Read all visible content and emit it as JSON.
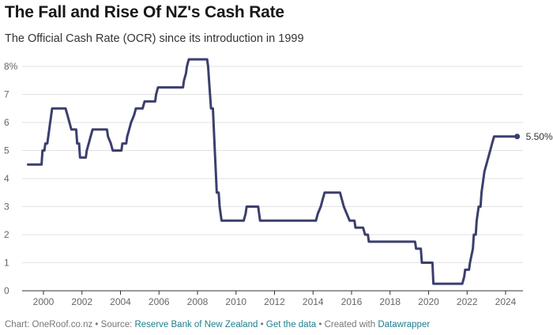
{
  "chart_data": {
    "type": "line",
    "title": "The Fall and Rise Of NZ's Cash Rate",
    "subtitle": "The Official Cash Rate (OCR) since its introduction in 1999",
    "xlabel": "",
    "ylabel": "",
    "xlim": [
      1999.0,
      2025.0
    ],
    "ylim": [
      0,
      8
    ],
    "grid": true,
    "y_ticks": [
      {
        "value": 0,
        "label": "0"
      },
      {
        "value": 1,
        "label": "1"
      },
      {
        "value": 2,
        "label": "2"
      },
      {
        "value": 3,
        "label": "3"
      },
      {
        "value": 4,
        "label": "4"
      },
      {
        "value": 5,
        "label": "5"
      },
      {
        "value": 6,
        "label": "6"
      },
      {
        "value": 7,
        "label": "7"
      },
      {
        "value": 8,
        "label": "8%"
      }
    ],
    "x_ticks": [
      {
        "value": 2000,
        "label": "2000"
      },
      {
        "value": 2002,
        "label": "2002"
      },
      {
        "value": 2004,
        "label": "2004"
      },
      {
        "value": 2006,
        "label": "2006"
      },
      {
        "value": 2008,
        "label": "2008"
      },
      {
        "value": 2010,
        "label": "2010"
      },
      {
        "value": 2012,
        "label": "2012"
      },
      {
        "value": 2014,
        "label": "2014"
      },
      {
        "value": 2016,
        "label": "2016"
      },
      {
        "value": 2018,
        "label": "2018"
      },
      {
        "value": 2020,
        "label": "2020"
      },
      {
        "value": 2022,
        "label": "2022"
      },
      {
        "value": 2024,
        "label": "2024"
      }
    ],
    "end_label": "5.50%",
    "line_color": "#3b3f6e",
    "series": [
      {
        "values": [
          [
            1999.2,
            4.5
          ],
          [
            1999.9,
            4.5
          ],
          [
            1999.95,
            5.0
          ],
          [
            2000.05,
            5.0
          ],
          [
            2000.1,
            5.25
          ],
          [
            2000.2,
            5.25
          ],
          [
            2000.3,
            5.75
          ],
          [
            2000.35,
            6.0
          ],
          [
            2000.45,
            6.5
          ],
          [
            2001.15,
            6.5
          ],
          [
            2001.25,
            6.25
          ],
          [
            2001.35,
            6.0
          ],
          [
            2001.45,
            5.75
          ],
          [
            2001.7,
            5.75
          ],
          [
            2001.75,
            5.25
          ],
          [
            2001.85,
            5.25
          ],
          [
            2001.9,
            4.75
          ],
          [
            2002.2,
            4.75
          ],
          [
            2002.25,
            5.0
          ],
          [
            2002.35,
            5.25
          ],
          [
            2002.45,
            5.5
          ],
          [
            2002.55,
            5.75
          ],
          [
            2003.3,
            5.75
          ],
          [
            2003.35,
            5.5
          ],
          [
            2003.5,
            5.25
          ],
          [
            2003.6,
            5.0
          ],
          [
            2004.05,
            5.0
          ],
          [
            2004.1,
            5.25
          ],
          [
            2004.3,
            5.25
          ],
          [
            2004.35,
            5.5
          ],
          [
            2004.45,
            5.75
          ],
          [
            2004.55,
            6.0
          ],
          [
            2004.7,
            6.25
          ],
          [
            2004.8,
            6.5
          ],
          [
            2005.15,
            6.5
          ],
          [
            2005.25,
            6.75
          ],
          [
            2005.8,
            6.75
          ],
          [
            2005.85,
            7.0
          ],
          [
            2005.95,
            7.25
          ],
          [
            2007.25,
            7.25
          ],
          [
            2007.3,
            7.5
          ],
          [
            2007.4,
            7.75
          ],
          [
            2007.45,
            8.0
          ],
          [
            2007.55,
            8.25
          ],
          [
            2008.5,
            8.25
          ],
          [
            2008.55,
            8.0
          ],
          [
            2008.6,
            7.5
          ],
          [
            2008.7,
            6.5
          ],
          [
            2008.8,
            6.5
          ],
          [
            2008.9,
            5.0
          ],
          [
            2009.0,
            3.5
          ],
          [
            2009.1,
            3.5
          ],
          [
            2009.15,
            3.0
          ],
          [
            2009.25,
            2.5
          ],
          [
            2010.4,
            2.5
          ],
          [
            2010.5,
            2.75
          ],
          [
            2010.55,
            3.0
          ],
          [
            2011.15,
            3.0
          ],
          [
            2011.25,
            2.5
          ],
          [
            2014.15,
            2.5
          ],
          [
            2014.25,
            2.75
          ],
          [
            2014.4,
            3.0
          ],
          [
            2014.5,
            3.25
          ],
          [
            2014.6,
            3.5
          ],
          [
            2015.4,
            3.5
          ],
          [
            2015.5,
            3.25
          ],
          [
            2015.6,
            3.0
          ],
          [
            2015.75,
            2.75
          ],
          [
            2015.9,
            2.5
          ],
          [
            2016.15,
            2.5
          ],
          [
            2016.2,
            2.25
          ],
          [
            2016.6,
            2.25
          ],
          [
            2016.7,
            2.0
          ],
          [
            2016.85,
            2.0
          ],
          [
            2016.9,
            1.75
          ],
          [
            2019.3,
            1.75
          ],
          [
            2019.35,
            1.5
          ],
          [
            2019.6,
            1.5
          ],
          [
            2019.65,
            1.0
          ],
          [
            2020.2,
            1.0
          ],
          [
            2020.25,
            0.25
          ],
          [
            2021.75,
            0.25
          ],
          [
            2021.85,
            0.5
          ],
          [
            2021.9,
            0.75
          ],
          [
            2022.1,
            0.75
          ],
          [
            2022.15,
            1.0
          ],
          [
            2022.3,
            1.5
          ],
          [
            2022.35,
            2.0
          ],
          [
            2022.45,
            2.0
          ],
          [
            2022.5,
            2.5
          ],
          [
            2022.6,
            3.0
          ],
          [
            2022.7,
            3.0
          ],
          [
            2022.75,
            3.5
          ],
          [
            2022.9,
            4.25
          ],
          [
            2023.1,
            4.75
          ],
          [
            2023.3,
            5.25
          ],
          [
            2023.4,
            5.5
          ],
          [
            2024.6,
            5.5
          ]
        ]
      }
    ]
  },
  "footer": {
    "chart_prefix": "Chart: OneRoof.co.nz",
    "sep1": " • Source: ",
    "source_link": "Reserve Bank of New Zealand",
    "sep2": " • ",
    "data_link": "Get the data",
    "sep3": " • Created with ",
    "tool_link": "Datawrapper"
  }
}
